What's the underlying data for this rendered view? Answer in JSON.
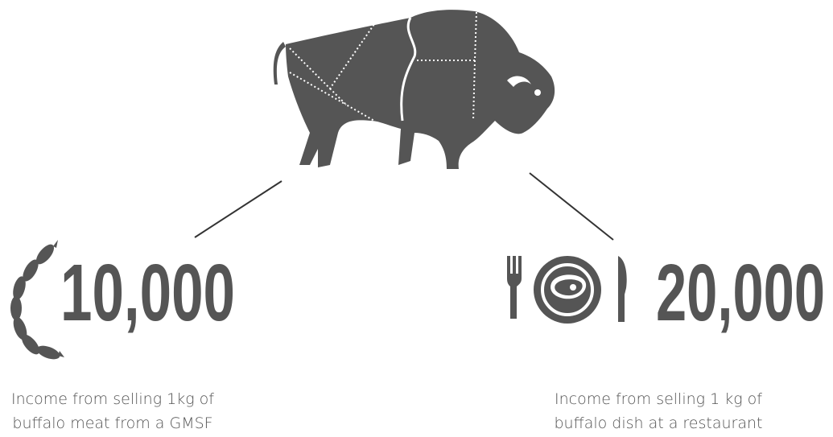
{
  "left": {
    "amount": "10,000",
    "caption_lines": [
      "Income from selling 1kg of",
      "buffalo meat from a GMSF"
    ]
  },
  "right": {
    "amount": "20,000",
    "caption_lines": [
      "Income from selling 1 kg of",
      "buffalo dish at a restaurant"
    ]
  }
}
